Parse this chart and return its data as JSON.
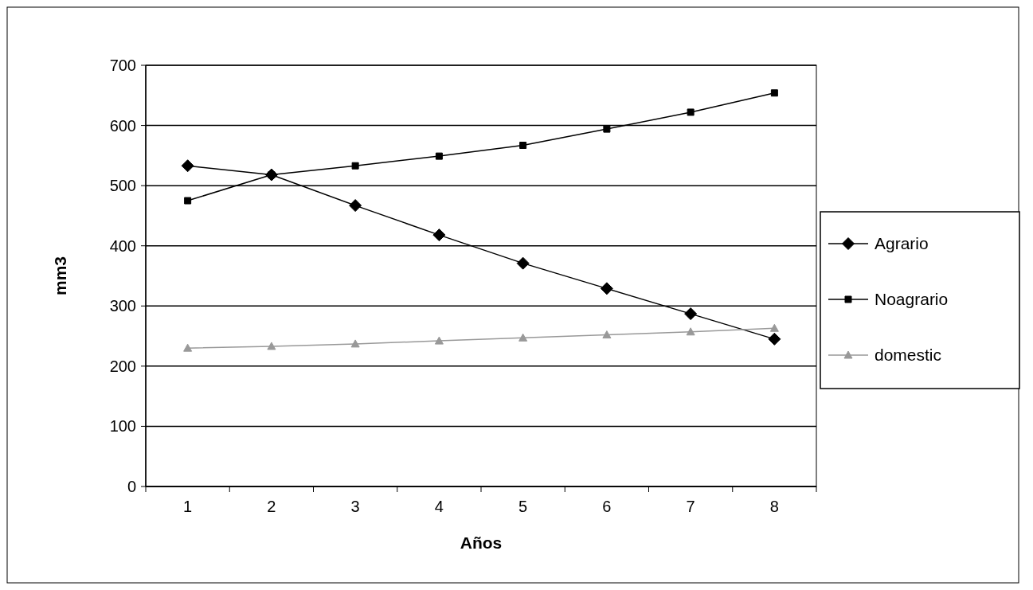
{
  "chart_data": {
    "type": "line",
    "xlabel": "Años",
    "ylabel": "mm3",
    "categories": [
      "1",
      "2",
      "3",
      "4",
      "5",
      "6",
      "7",
      "8"
    ],
    "ylim": [
      0,
      700
    ],
    "yticks": [
      0,
      100,
      200,
      300,
      400,
      500,
      600,
      700
    ],
    "grid": "y",
    "legend": "right",
    "line_style": "solid",
    "series": [
      {
        "name": "Agrario",
        "color": "#000000",
        "marker": "diamond",
        "values": [
          533,
          518,
          467,
          418,
          371,
          329,
          287,
          245
        ]
      },
      {
        "name": "Noagrario",
        "color": "#000000",
        "marker": "square",
        "values": [
          475,
          518,
          533,
          549,
          567,
          594,
          622,
          654
        ]
      },
      {
        "name": "domestic",
        "color": "#999999",
        "marker": "triangle",
        "values": [
          230,
          233,
          237,
          242,
          247,
          252,
          257,
          263
        ]
      }
    ]
  }
}
